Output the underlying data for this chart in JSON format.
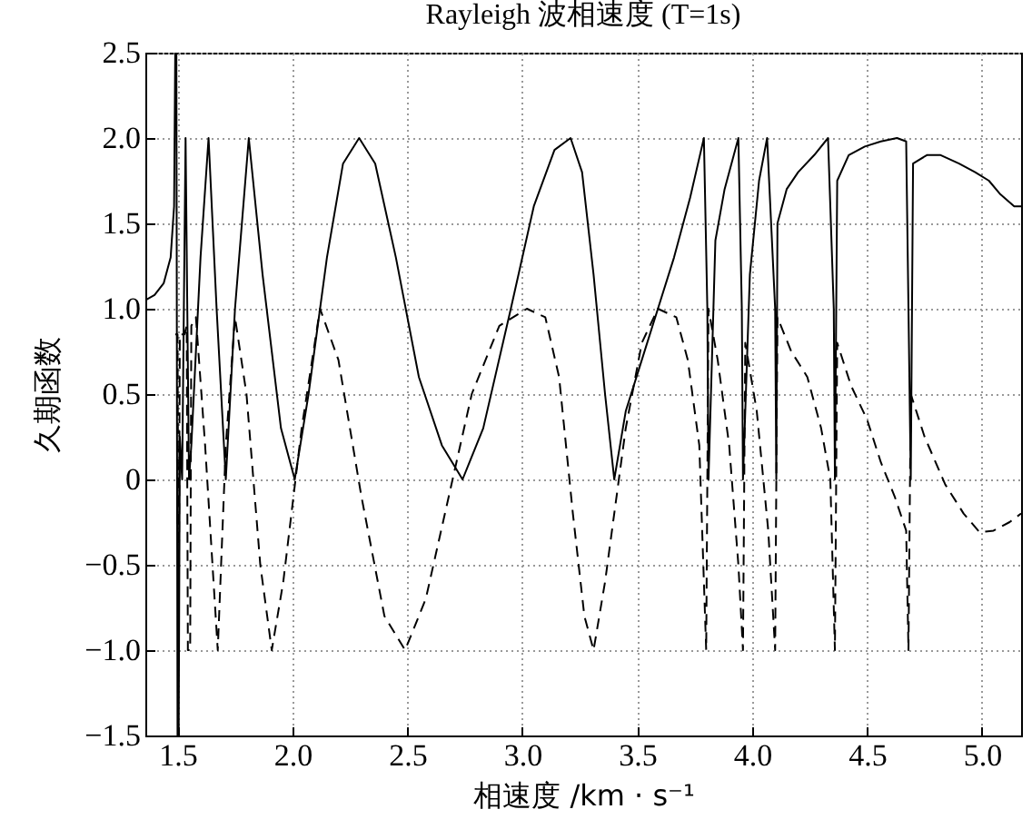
{
  "chart_data": {
    "type": "line",
    "title": "Rayleigh 波相速度 (T=1s)",
    "xlabel": "相速度 /km · s⁻¹",
    "ylabel": "久期函数",
    "xlim": [
      1.36,
      5.17
    ],
    "ylim": [
      -1.5,
      2.5
    ],
    "xticks": [
      1.5,
      {
        "value": 2,
        "label": "2.0"
      },
      2.5,
      {
        "value": 3,
        "label": "3.0"
      },
      3.5,
      {
        "value": 4,
        "label": "4.0"
      },
      4.5,
      {
        "value": 5,
        "label": "5.0"
      }
    ],
    "yticks": [
      {
        "value": -1.5,
        "label": "−1.5"
      },
      {
        "value": -1,
        "label": "−1.0"
      },
      {
        "value": -0.5,
        "label": "−0.5"
      },
      0,
      0.5,
      {
        "value": 1,
        "label": "1.0"
      },
      1.5,
      {
        "value": 2,
        "label": "2.0"
      },
      2.5
    ],
    "grid": true,
    "series": [
      {
        "color": "#000000",
        "line_style": "solid",
        "x": [
          1.36,
          1.4,
          1.44,
          1.47,
          1.485,
          1.49,
          1.495,
          1.5,
          1.505,
          1.51,
          1.52,
          1.535,
          1.55,
          1.56,
          1.6,
          1.635,
          1.67,
          1.71,
          1.75,
          1.81,
          1.87,
          1.95,
          2.01,
          2.07,
          2.15,
          2.22,
          2.29,
          2.36,
          2.45,
          2.55,
          2.65,
          2.74,
          2.83,
          2.95,
          3.05,
          3.14,
          3.21,
          3.26,
          3.31,
          3.36,
          3.4,
          3.45,
          3.52,
          3.59,
          3.66,
          3.73,
          3.79,
          3.805,
          3.81,
          3.84,
          3.88,
          3.94,
          3.955,
          3.96,
          3.99,
          4.03,
          4.065,
          4.1,
          4.105,
          4.11,
          4.15,
          4.2,
          4.27,
          4.33,
          4.355,
          4.36,
          4.37,
          4.42,
          4.49,
          4.56,
          4.63,
          4.67,
          4.68,
          4.69,
          4.7,
          4.76,
          4.82,
          4.9,
          4.97,
          5.03,
          5.08,
          5.14,
          5.17
        ],
        "values": [
          1.05,
          1.08,
          1.15,
          1.3,
          1.6,
          2.5,
          2.5,
          -1.5,
          -1.5,
          0.25,
          0,
          2.0,
          0,
          0.2,
          1.3,
          2.0,
          1.0,
          0,
          1.0,
          2.0,
          1.2,
          0.3,
          0,
          0.5,
          1.3,
          1.85,
          2.0,
          1.85,
          1.3,
          0.6,
          0.2,
          0,
          0.3,
          1.0,
          1.6,
          1.93,
          2.0,
          1.8,
          1.2,
          0.5,
          0,
          0.4,
          0.7,
          1.0,
          1.3,
          1.65,
          2.0,
          1.0,
          0,
          1.4,
          1.7,
          2.0,
          1.0,
          0,
          1.2,
          1.75,
          2.0,
          1.0,
          0,
          1.5,
          1.7,
          1.8,
          1.9,
          2.0,
          1.0,
          0,
          1.75,
          1.9,
          1.95,
          1.98,
          2.0,
          1.98,
          1.0,
          0,
          1.85,
          1.9,
          1.9,
          1.85,
          1.8,
          1.75,
          1.67,
          1.6,
          1.6
        ]
      },
      {
        "color": "#000000",
        "line_style": "dashed",
        "x": [
          1.49,
          1.5,
          1.505,
          1.51,
          1.53,
          1.54,
          1.545,
          1.555,
          1.56,
          1.58,
          1.62,
          1.675,
          1.71,
          1.75,
          1.8,
          1.86,
          1.91,
          1.96,
          2.04,
          2.12,
          2.2,
          2.3,
          2.4,
          2.49,
          2.58,
          2.68,
          2.78,
          2.9,
          3.02,
          3.1,
          3.16,
          3.22,
          3.27,
          3.31,
          3.36,
          3.45,
          3.52,
          3.59,
          3.67,
          3.72,
          3.77,
          3.8,
          3.81,
          3.85,
          3.9,
          3.94,
          3.96,
          3.97,
          4.02,
          4.07,
          4.1,
          4.11,
          4.17,
          4.24,
          4.3,
          4.34,
          4.36,
          4.37,
          4.43,
          4.5,
          4.56,
          4.62,
          4.67,
          4.68,
          4.69,
          4.75,
          4.84,
          4.92,
          4.99,
          5.05,
          5.12,
          5.17
        ],
        "values": [
          0.85,
          0.85,
          -1.0,
          0.85,
          0.85,
          0.9,
          -1.0,
          -1.0,
          0.9,
          0.95,
          0.2,
          -1.0,
          0.2,
          0.95,
          0.5,
          -0.5,
          -1.0,
          -0.6,
          0.3,
          1.0,
          0.7,
          -0.1,
          -0.8,
          -1.0,
          -0.7,
          -0.1,
          0.5,
          0.9,
          1.0,
          0.95,
          0.6,
          -0.2,
          -0.8,
          -1.0,
          -0.6,
          0.3,
          0.8,
          1.0,
          0.95,
          0.7,
          0.2,
          -1.0,
          1.0,
          0.7,
          0.2,
          -0.5,
          -1.0,
          0.8,
          0.4,
          -0.3,
          -1.0,
          0.95,
          0.75,
          0.6,
          0.3,
          0,
          -1.0,
          0.8,
          0.55,
          0.35,
          0.1,
          -0.1,
          -0.3,
          -1.0,
          0.5,
          0.25,
          -0.03,
          -0.2,
          -0.31,
          -0.3,
          -0.25,
          -0.2
        ]
      }
    ]
  }
}
